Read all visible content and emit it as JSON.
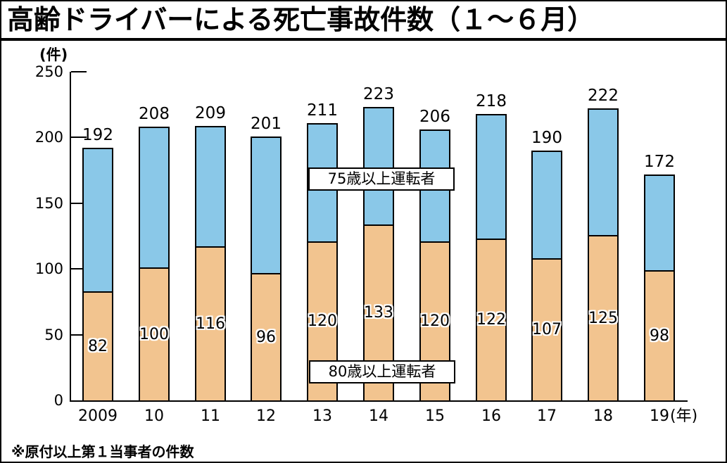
{
  "header": {
    "title": "高齢ドライバーによる死亡事故件数（１～６月）"
  },
  "footnote": "※原付以上第１当事者の件数",
  "chart_data": {
    "type": "bar",
    "stacked": true,
    "title": "高齢ドライバーによる死亡事故件数（１～６月）",
    "unit_y": "(件)",
    "unit_x": "(年)",
    "categories": [
      "2009",
      "10",
      "11",
      "12",
      "13",
      "14",
      "15",
      "16",
      "17",
      "18",
      "19"
    ],
    "series": [
      {
        "name": "75歳以上運転者",
        "segment": "top",
        "color": "#8AC8E8",
        "bar_totals": [
          192,
          208,
          209,
          201,
          211,
          223,
          206,
          218,
          190,
          222,
          172
        ]
      },
      {
        "name": "80歳以上運転者",
        "segment": "bottom",
        "color": "#F2C48F",
        "values": [
          82,
          100,
          116,
          96,
          120,
          133,
          120,
          122,
          107,
          125,
          98
        ]
      }
    ],
    "ylim": [
      0,
      250
    ],
    "yticks": [
      0,
      50,
      100,
      150,
      200,
      250
    ],
    "grid": false,
    "legend_position": "text boxes overlaid on bars"
  }
}
